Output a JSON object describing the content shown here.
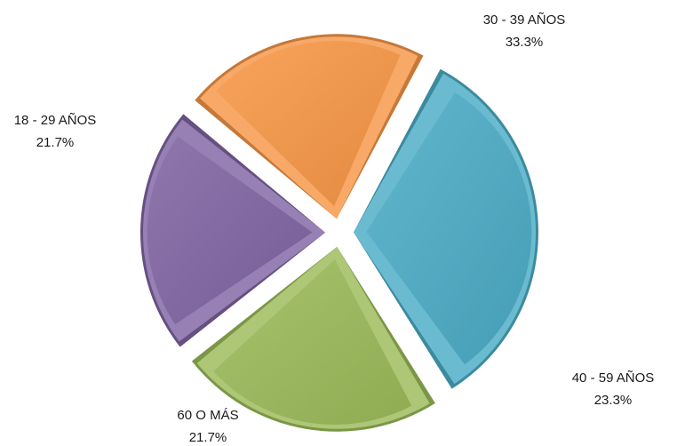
{
  "chart_data": {
    "type": "pie",
    "title": "",
    "exploded": true,
    "style": "3d-beveled",
    "slices": [
      {
        "label": "30 - 39 AÑOS",
        "value": 33.3,
        "value_label": "33.3%",
        "color": "#4BACC6"
      },
      {
        "label": "40 - 59 AÑOS",
        "value": 23.3,
        "value_label": "23.3%",
        "color": "#9BBB59"
      },
      {
        "label": "60 O MÁS",
        "value": 21.7,
        "value_label": "21.7%",
        "color": "#8064A2"
      },
      {
        "label": "18 - 29 AÑOS",
        "value": 21.7,
        "value_label": "21.7%",
        "color": "#F79646"
      }
    ]
  }
}
